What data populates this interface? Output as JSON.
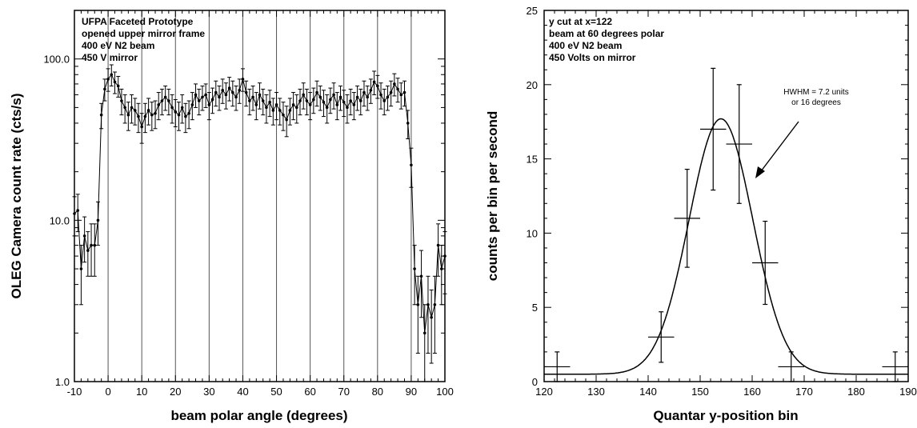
{
  "chart_data": [
    {
      "type": "scatter",
      "xlabel": "beam polar angle (degrees)",
      "ylabel": "OLEG Camera count rate (cts/s)",
      "yscale": "log",
      "xlim": [
        -10,
        100
      ],
      "ylim": [
        1.0,
        200
      ],
      "xticks": [
        -10,
        0,
        10,
        20,
        30,
        40,
        50,
        60,
        70,
        80,
        90,
        100
      ],
      "xtick_labels": [
        "-10",
        "0",
        "10",
        "20",
        "30",
        "40",
        "50",
        "60",
        "70",
        "80",
        "90",
        "100"
      ],
      "yticks": [
        1.0,
        10.0,
        100.0
      ],
      "ytick_labels": [
        "1.0",
        "10.0",
        "100.0"
      ],
      "vertical_gridlines": [
        0,
        10,
        20,
        30,
        40,
        50,
        60,
        70,
        80,
        90
      ],
      "annotations": [
        "UFPA  Faceted  Prototype",
        "opened upper mirror frame",
        "400  eV  N2  beam",
        "450 V mirror"
      ],
      "series": [
        {
          "points": [
            {
              "x": -10,
              "y": 11,
              "err": 3
            },
            {
              "x": -9,
              "y": 11.5,
              "err": 3
            },
            {
              "x": -8,
              "y": 5,
              "err": 2
            },
            {
              "x": -7,
              "y": 8,
              "err": 2.5
            },
            {
              "x": -6,
              "y": 6.5,
              "err": 2
            },
            {
              "x": -5,
              "y": 7,
              "err": 2.5
            },
            {
              "x": -4,
              "y": 7,
              "err": 2.5
            },
            {
              "x": -3,
              "y": 10,
              "err": 3
            },
            {
              "x": -2,
              "y": 45,
              "err": 8
            },
            {
              "x": -1,
              "y": 65,
              "err": 10
            },
            {
              "x": 0,
              "y": 75,
              "err": 12
            },
            {
              "x": 1,
              "y": 80,
              "err": 12
            },
            {
              "x": 2,
              "y": 72,
              "err": 11
            },
            {
              "x": 3,
              "y": 68,
              "err": 10
            },
            {
              "x": 4,
              "y": 55,
              "err": 10
            },
            {
              "x": 5,
              "y": 50,
              "err": 10
            },
            {
              "x": 6,
              "y": 45,
              "err": 9
            },
            {
              "x": 7,
              "y": 50,
              "err": 10
            },
            {
              "x": 8,
              "y": 48,
              "err": 9
            },
            {
              "x": 9,
              "y": 44,
              "err": 9
            },
            {
              "x": 10,
              "y": 38,
              "err": 8
            },
            {
              "x": 11,
              "y": 44,
              "err": 9
            },
            {
              "x": 12,
              "y": 48,
              "err": 9
            },
            {
              "x": 13,
              "y": 45,
              "err": 9
            },
            {
              "x": 14,
              "y": 46,
              "err": 9
            },
            {
              "x": 15,
              "y": 52,
              "err": 10
            },
            {
              "x": 16,
              "y": 55,
              "err": 10
            },
            {
              "x": 17,
              "y": 58,
              "err": 10
            },
            {
              "x": 18,
              "y": 55,
              "err": 10
            },
            {
              "x": 19,
              "y": 50,
              "err": 10
            },
            {
              "x": 20,
              "y": 47,
              "err": 9
            },
            {
              "x": 21,
              "y": 45,
              "err": 9
            },
            {
              "x": 22,
              "y": 50,
              "err": 10
            },
            {
              "x": 23,
              "y": 44,
              "err": 9
            },
            {
              "x": 24,
              "y": 46,
              "err": 9
            },
            {
              "x": 25,
              "y": 52,
              "err": 10
            },
            {
              "x": 26,
              "y": 60,
              "err": 10
            },
            {
              "x": 27,
              "y": 55,
              "err": 10
            },
            {
              "x": 28,
              "y": 58,
              "err": 10
            },
            {
              "x": 29,
              "y": 60,
              "err": 10
            },
            {
              "x": 30,
              "y": 52,
              "err": 10
            },
            {
              "x": 31,
              "y": 56,
              "err": 10
            },
            {
              "x": 32,
              "y": 62,
              "err": 11
            },
            {
              "x": 33,
              "y": 58,
              "err": 10
            },
            {
              "x": 34,
              "y": 64,
              "err": 11
            },
            {
              "x": 35,
              "y": 60,
              "err": 11
            },
            {
              "x": 36,
              "y": 66,
              "err": 11
            },
            {
              "x": 37,
              "y": 62,
              "err": 11
            },
            {
              "x": 38,
              "y": 58,
              "err": 10
            },
            {
              "x": 39,
              "y": 64,
              "err": 11
            },
            {
              "x": 40,
              "y": 75,
              "err": 12
            },
            {
              "x": 41,
              "y": 62,
              "err": 11
            },
            {
              "x": 42,
              "y": 55,
              "err": 10
            },
            {
              "x": 43,
              "y": 58,
              "err": 10
            },
            {
              "x": 44,
              "y": 52,
              "err": 10
            },
            {
              "x": 45,
              "y": 60,
              "err": 11
            },
            {
              "x": 46,
              "y": 55,
              "err": 10
            },
            {
              "x": 47,
              "y": 50,
              "err": 10
            },
            {
              "x": 48,
              "y": 54,
              "err": 10
            },
            {
              "x": 49,
              "y": 48,
              "err": 9
            },
            {
              "x": 50,
              "y": 52,
              "err": 10
            },
            {
              "x": 51,
              "y": 48,
              "err": 9
            },
            {
              "x": 52,
              "y": 45,
              "err": 9
            },
            {
              "x": 53,
              "y": 42,
              "err": 9
            },
            {
              "x": 54,
              "y": 48,
              "err": 9
            },
            {
              "x": 55,
              "y": 52,
              "err": 10
            },
            {
              "x": 56,
              "y": 50,
              "err": 10
            },
            {
              "x": 57,
              "y": 55,
              "err": 10
            },
            {
              "x": 58,
              "y": 60,
              "err": 11
            },
            {
              "x": 59,
              "y": 55,
              "err": 10
            },
            {
              "x": 60,
              "y": 52,
              "err": 10
            },
            {
              "x": 61,
              "y": 56,
              "err": 10
            },
            {
              "x": 62,
              "y": 62,
              "err": 11
            },
            {
              "x": 63,
              "y": 58,
              "err": 10
            },
            {
              "x": 64,
              "y": 54,
              "err": 10
            },
            {
              "x": 65,
              "y": 50,
              "err": 10
            },
            {
              "x": 66,
              "y": 56,
              "err": 10
            },
            {
              "x": 67,
              "y": 60,
              "err": 11
            },
            {
              "x": 68,
              "y": 52,
              "err": 10
            },
            {
              "x": 69,
              "y": 58,
              "err": 10
            },
            {
              "x": 70,
              "y": 54,
              "err": 10
            },
            {
              "x": 71,
              "y": 50,
              "err": 10
            },
            {
              "x": 72,
              "y": 55,
              "err": 10
            },
            {
              "x": 73,
              "y": 52,
              "err": 10
            },
            {
              "x": 74,
              "y": 58,
              "err": 10
            },
            {
              "x": 75,
              "y": 55,
              "err": 10
            },
            {
              "x": 76,
              "y": 62,
              "err": 11
            },
            {
              "x": 77,
              "y": 58,
              "err": 10
            },
            {
              "x": 78,
              "y": 64,
              "err": 11
            },
            {
              "x": 79,
              "y": 72,
              "err": 12
            },
            {
              "x": 80,
              "y": 68,
              "err": 11
            },
            {
              "x": 81,
              "y": 60,
              "err": 11
            },
            {
              "x": 82,
              "y": 55,
              "err": 10
            },
            {
              "x": 83,
              "y": 58,
              "err": 10
            },
            {
              "x": 84,
              "y": 62,
              "err": 11
            },
            {
              "x": 85,
              "y": 70,
              "err": 11
            },
            {
              "x": 86,
              "y": 65,
              "err": 11
            },
            {
              "x": 87,
              "y": 60,
              "err": 11
            },
            {
              "x": 88,
              "y": 62,
              "err": 11
            },
            {
              "x": 89,
              "y": 40,
              "err": 8
            },
            {
              "x": 90,
              "y": 22,
              "err": 6
            },
            {
              "x": 91,
              "y": 5,
              "err": 2
            },
            {
              "x": 92,
              "y": 3,
              "err": 1.5
            },
            {
              "x": 93,
              "y": 4.5,
              "err": 2
            },
            {
              "x": 94,
              "y": 2,
              "err": 1
            },
            {
              "x": 95,
              "y": 3,
              "err": 1.5
            },
            {
              "x": 96,
              "y": 2.5,
              "err": 1.2
            },
            {
              "x": 97,
              "y": 3,
              "err": 1.5
            },
            {
              "x": 98,
              "y": 7,
              "err": 2.5
            },
            {
              "x": 99,
              "y": 5,
              "err": 2
            },
            {
              "x": 100,
              "y": 6,
              "err": 2.5
            }
          ]
        }
      ]
    },
    {
      "type": "scatter",
      "xlabel": "Quantar y-position bin",
      "ylabel": "counts per bin per second",
      "xlim": [
        120,
        190
      ],
      "ylim": [
        0,
        25
      ],
      "xticks": [
        120,
        130,
        140,
        150,
        160,
        170,
        180,
        190
      ],
      "xtick_labels": [
        "120",
        "130",
        "140",
        "150",
        "160",
        "170",
        "180",
        "190"
      ],
      "yticks": [
        0,
        5,
        10,
        15,
        20,
        25
      ],
      "ytick_labels": [
        "0",
        "5",
        "10",
        "15",
        "20",
        "25"
      ],
      "annotations": [
        "y cut at x=122",
        "beam at 60 degrees polar",
        "400 eV N2 beam",
        "450 Volts on mirror"
      ],
      "callout": [
        "HWHM = 7.2 units",
        "or 16 degrees"
      ],
      "points": [
        {
          "x": 122.5,
          "y": 1,
          "xerr": 2.5,
          "yerr": 1
        },
        {
          "x": 142.5,
          "y": 3,
          "xerr": 2.5,
          "yerr": 1.7
        },
        {
          "x": 147.5,
          "y": 11,
          "xerr": 2.5,
          "yerr": 3.3
        },
        {
          "x": 152.5,
          "y": 17,
          "xerr": 2.5,
          "yerr": 4.1
        },
        {
          "x": 157.5,
          "y": 16,
          "xerr": 2.5,
          "yerr": 4.0
        },
        {
          "x": 162.5,
          "y": 8,
          "xerr": 2.5,
          "yerr": 2.8
        },
        {
          "x": 167.5,
          "y": 1,
          "xerr": 2.5,
          "yerr": 1
        },
        {
          "x": 187.5,
          "y": 1,
          "xerr": 2.5,
          "yerr": 1
        }
      ],
      "fit": {
        "type": "gaussian",
        "amplitude": 17.7,
        "center": 154,
        "hwhm": 7.2,
        "baseline": 0.5
      }
    }
  ]
}
